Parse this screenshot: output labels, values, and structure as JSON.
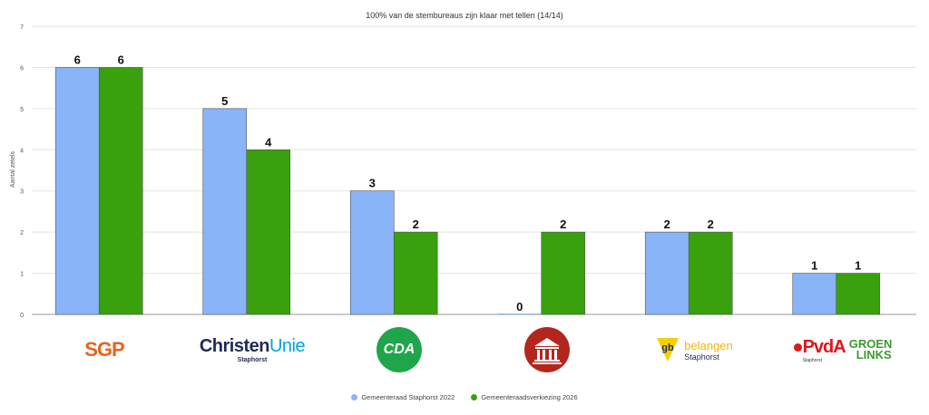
{
  "chart_data": {
    "type": "bar",
    "title": "100% van de stembureaus zijn klaar met tellen (14/14)",
    "xlabel": "",
    "ylabel": "Aantal zetels",
    "ylim": [
      0,
      7
    ],
    "yticks": [
      0,
      1,
      2,
      3,
      4,
      5,
      6,
      7
    ],
    "grid": true,
    "legend_position": "bottom",
    "categories": [
      "SGP",
      "ChristenUnie",
      "CDA",
      "Lokale partij",
      "gb belangen Staphorst",
      "PvdA GroenLinks"
    ],
    "series": [
      {
        "name": "Gemeenteraad Staphorst 2022",
        "values": [
          6,
          5,
          3,
          0,
          2,
          1
        ],
        "color": "#8ab4f8"
      },
      {
        "name": "Gemeenteraadsverkiezing 2026",
        "values": [
          6,
          4,
          2,
          2,
          2,
          1
        ],
        "color": "#38a10d"
      }
    ]
  },
  "logos": {
    "sgp": {
      "text": "SGP",
      "color": "#e8641e"
    },
    "cu": {
      "text_a": "Christen",
      "text_b": "Unie",
      "sub": "Staphorst",
      "color_a": "#1f2a5a",
      "color_b": "#00a3e0"
    },
    "cda": {
      "text": "CDA",
      "color": "#1fa64a"
    },
    "local": {
      "color": "#b3261e"
    },
    "gb": {
      "mark": "gb",
      "name": "belangen",
      "sub": "Staphorst",
      "yellow": "#f4d000",
      "navy": "#1d2d5c"
    },
    "pvdagl": {
      "pvda": "PvdA",
      "groen": "GROEN",
      "links": "LINKS",
      "sub": "Staphorst",
      "red": "#e0161b",
      "green": "#3a9b2e"
    }
  }
}
